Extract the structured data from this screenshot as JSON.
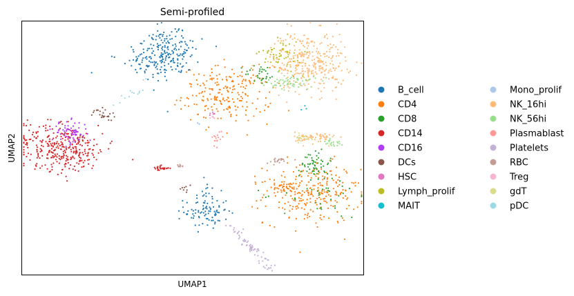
{
  "chart_data": {
    "type": "scatter",
    "title": "Semi-profiled",
    "xlabel": "UMAP1",
    "ylabel": "UMAP2",
    "xlim": [
      0,
      100
    ],
    "ylim": [
      0,
      100
    ],
    "xticks": false,
    "yticks": false,
    "grid": false,
    "legend_position": "right, outside plot, 2 columns",
    "point_size": "small",
    "series": [
      {
        "name": "B_cell",
        "color": "#1f77b4",
        "clusters": [
          {
            "cx": 41.5,
            "cy": 87,
            "sx": 5.5,
            "sy": 5,
            "n": 240,
            "angle": 25
          },
          {
            "cx": 54,
            "cy": 25,
            "sx": 3.2,
            "sy": 3.5,
            "n": 90,
            "angle": 0
          },
          {
            "cx": 54.5,
            "cy": 34,
            "sx": 0.8,
            "sy": 2.5,
            "n": 10,
            "angle": 0
          }
        ]
      },
      {
        "name": "CD4",
        "color": "#ff7f0e",
        "clusters": [
          {
            "cx": 60,
            "cy": 71,
            "sx": 6.5,
            "sy": 5.5,
            "n": 220,
            "angle": 0
          },
          {
            "cx": 85,
            "cy": 32,
            "sx": 7,
            "sy": 6,
            "n": 260,
            "angle": 0
          },
          {
            "cx": 76,
            "cy": 35,
            "sx": 3,
            "sy": 1.5,
            "n": 40,
            "angle": 0
          }
        ]
      },
      {
        "name": "CD8",
        "color": "#2ca02c",
        "clusters": [
          {
            "cx": 86,
            "cy": 44,
            "sx": 2,
            "sy": 3,
            "n": 55,
            "angle": 0
          },
          {
            "cx": 70,
            "cy": 79,
            "sx": 2.5,
            "sy": 2,
            "n": 30,
            "angle": 0
          },
          {
            "cx": 88,
            "cy": 32,
            "sx": 6,
            "sy": 5,
            "n": 40,
            "angle": 0
          }
        ]
      },
      {
        "name": "CD14",
        "color": "#d62728",
        "clusters": [
          {
            "cx": 12,
            "cy": 50,
            "sx": 6.5,
            "sy": 4.5,
            "n": 340,
            "angle": -18
          },
          {
            "cx": 40.5,
            "cy": 42,
            "sx": 1.3,
            "sy": 0.5,
            "n": 25,
            "angle": 0
          }
        ]
      },
      {
        "name": "CD16",
        "color": "#b23cf6",
        "clusters": [
          {
            "cx": 14,
            "cy": 56,
            "sx": 2.6,
            "sy": 2.3,
            "n": 70,
            "angle": 0
          }
        ]
      },
      {
        "name": "DCs",
        "color": "#8c564b",
        "clusters": [
          {
            "cx": 24,
            "cy": 63,
            "sx": 2,
            "sy": 1.3,
            "n": 25,
            "angle": -40
          },
          {
            "cx": 48,
            "cy": 34,
            "sx": 0.8,
            "sy": 1,
            "n": 8,
            "angle": 0
          }
        ]
      },
      {
        "name": "HSC",
        "color": "#e377c2",
        "clusters": [
          {
            "cx": 55.5,
            "cy": 64,
            "sx": 0.8,
            "sy": 0.6,
            "n": 6,
            "angle": 0
          }
        ]
      },
      {
        "name": "Lymph_prolif",
        "color": "#bcbd22",
        "clusters": [
          {
            "cx": 76,
            "cy": 87,
            "sx": 3,
            "sy": 3,
            "n": 60,
            "angle": 0
          }
        ]
      },
      {
        "name": "MAIT",
        "color": "#17becf",
        "clusters": [
          {
            "cx": 83,
            "cy": 66,
            "sx": 0.6,
            "sy": 0.6,
            "n": 3,
            "angle": 0
          }
        ]
      },
      {
        "name": "Mono_prolif",
        "color": "#aec7e8",
        "clusters": [
          {
            "cx": 52,
            "cy": 60,
            "sx": 0.8,
            "sy": 0.8,
            "n": 4,
            "angle": 0
          }
        ]
      },
      {
        "name": "NK_16hi",
        "color": "#ffbb78",
        "clusters": [
          {
            "cx": 84,
            "cy": 84,
            "sx": 5.5,
            "sy": 6,
            "n": 320,
            "angle": 0
          },
          {
            "cx": 86,
            "cy": 54,
            "sx": 3,
            "sy": 1.2,
            "n": 60,
            "angle": 0
          }
        ]
      },
      {
        "name": "NK_56hi",
        "color": "#98df8a",
        "clusters": [
          {
            "cx": 79,
            "cy": 76,
            "sx": 3.5,
            "sy": 1.5,
            "n": 60,
            "angle": 0
          },
          {
            "cx": 91,
            "cy": 52,
            "sx": 1.2,
            "sy": 1,
            "n": 20,
            "angle": 0
          }
        ]
      },
      {
        "name": "Plasmablast",
        "color": "#ff9896",
        "clusters": [
          {
            "cx": 57,
            "cy": 54,
            "sx": 0.9,
            "sy": 1.3,
            "n": 16,
            "angle": 0
          }
        ]
      },
      {
        "name": "Platelets",
        "color": "#c5b0d5",
        "clusters": [
          {
            "cx": 67,
            "cy": 11,
            "sx": 0.9,
            "sy": 6,
            "n": 70,
            "angle": 35
          }
        ]
      },
      {
        "name": "RBC",
        "color": "#c49c94",
        "clusters": [
          {
            "cx": 75,
            "cy": 45,
            "sx": 1.8,
            "sy": 0.6,
            "n": 20,
            "angle": 0
          },
          {
            "cx": 45.5,
            "cy": 43,
            "sx": 1.2,
            "sy": 0.3,
            "n": 8,
            "angle": 0
          }
        ]
      },
      {
        "name": "Treg",
        "color": "#f7b6d2",
        "clusters": [
          {
            "cx": 56,
            "cy": 62,
            "sx": 0.8,
            "sy": 0.6,
            "n": 5,
            "angle": 0
          }
        ]
      },
      {
        "name": "gdT",
        "color": "#dbdb8d",
        "clusters": [
          {
            "cx": 82,
            "cy": 54,
            "sx": 2,
            "sy": 0.8,
            "n": 20,
            "angle": 0
          }
        ]
      },
      {
        "name": "pDC",
        "color": "#9edae5",
        "clusters": [
          {
            "cx": 33,
            "cy": 72,
            "sx": 1,
            "sy": 3.5,
            "n": 14,
            "angle": -40
          }
        ]
      }
    ]
  }
}
